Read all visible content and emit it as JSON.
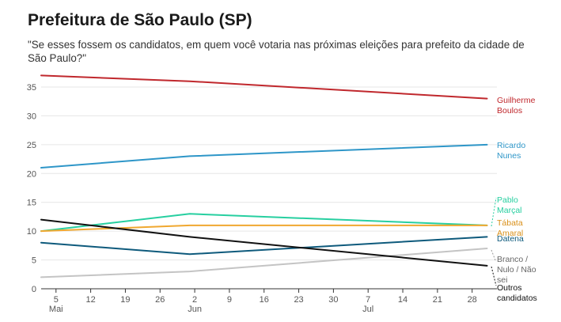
{
  "header": {
    "title": "Prefeitura de São Paulo (SP)",
    "subtitle": "\"Se esses fossem os candidatos, em quem você votaria nas próximas eleições para prefeito da cidade de São Paulo?\""
  },
  "chart_data": {
    "type": "line",
    "title": "Prefeitura de São Paulo (SP)",
    "subtitle": "\"Se esses fossem os candidatos, em quem você votaria nas próximas eleições para prefeito da cidade de São Paulo?\"",
    "xlabel": "",
    "ylabel": "",
    "ylim": [
      0,
      35
    ],
    "yticks": [
      0,
      5,
      10,
      15,
      20,
      25,
      30,
      35
    ],
    "xlim": [
      "2024-05-02",
      "2024-08-02"
    ],
    "xticks": [
      {
        "date": "2024-05-05",
        "label": "5",
        "month": "Mai"
      },
      {
        "date": "2024-05-12",
        "label": "12",
        "month": ""
      },
      {
        "date": "2024-05-19",
        "label": "19",
        "month": ""
      },
      {
        "date": "2024-05-26",
        "label": "26",
        "month": ""
      },
      {
        "date": "2024-06-02",
        "label": "2",
        "month": "Jun"
      },
      {
        "date": "2024-06-09",
        "label": "9",
        "month": ""
      },
      {
        "date": "2024-06-16",
        "label": "16",
        "month": ""
      },
      {
        "date": "2024-06-23",
        "label": "23",
        "month": ""
      },
      {
        "date": "2024-06-30",
        "label": "30",
        "month": ""
      },
      {
        "date": "2024-07-07",
        "label": "7",
        "month": "Jul"
      },
      {
        "date": "2024-07-14",
        "label": "14",
        "month": ""
      },
      {
        "date": "2024-07-21",
        "label": "21",
        "month": ""
      },
      {
        "date": "2024-07-28",
        "label": "28",
        "month": ""
      }
    ],
    "grid": true,
    "legend": "direct labels at line ends (right)",
    "series": [
      {
        "name": "Guilherme Boulos",
        "label_lines": [
          "Guilherme",
          "Boulos"
        ],
        "color": "#c0282d",
        "points": [
          {
            "x": "2024-05-02",
            "y": 37
          },
          {
            "x": "2024-06-01",
            "y": 36
          },
          {
            "x": "2024-07-31",
            "y": 33
          }
        ]
      },
      {
        "name": "Ricardo Nunes",
        "label_lines": [
          "Ricardo",
          "Nunes"
        ],
        "color": "#2e96c8",
        "points": [
          {
            "x": "2024-05-02",
            "y": 21
          },
          {
            "x": "2024-06-01",
            "y": 23
          },
          {
            "x": "2024-07-31",
            "y": 25
          }
        ]
      },
      {
        "name": "Pablo Marçal",
        "label_lines": [
          "Pablo",
          "Marçal"
        ],
        "color": "#27cfa0",
        "points": [
          {
            "x": "2024-05-02",
            "y": 10
          },
          {
            "x": "2024-06-01",
            "y": 13
          },
          {
            "x": "2024-07-31",
            "y": 11
          }
        ]
      },
      {
        "name": "Tábata Amaral",
        "label_lines": [
          "Tábata",
          "Amaral"
        ],
        "color": "#f0a830",
        "points": [
          {
            "x": "2024-05-02",
            "y": 10
          },
          {
            "x": "2024-06-01",
            "y": 11
          },
          {
            "x": "2024-07-31",
            "y": 11
          }
        ]
      },
      {
        "name": "Datena",
        "label_lines": [
          "Datena"
        ],
        "color": "#0e5a7c",
        "points": [
          {
            "x": "2024-05-02",
            "y": 8
          },
          {
            "x": "2024-06-01",
            "y": 6
          },
          {
            "x": "2024-07-31",
            "y": 9
          }
        ]
      },
      {
        "name": "Branco / Nulo / Não sei",
        "label_lines": [
          "Branco /",
          "Nulo / Não",
          "sei"
        ],
        "color": "#c4c4c4",
        "points": [
          {
            "x": "2024-05-02",
            "y": 2
          },
          {
            "x": "2024-06-01",
            "y": 3
          },
          {
            "x": "2024-07-31",
            "y": 7
          }
        ]
      },
      {
        "name": "Outros candidatos",
        "label_lines": [
          "Outros",
          "candidatos"
        ],
        "color": "#111111",
        "points": [
          {
            "x": "2024-05-02",
            "y": 12
          },
          {
            "x": "2024-06-01",
            "y": 9
          },
          {
            "x": "2024-07-31",
            "y": 4
          }
        ]
      }
    ]
  }
}
